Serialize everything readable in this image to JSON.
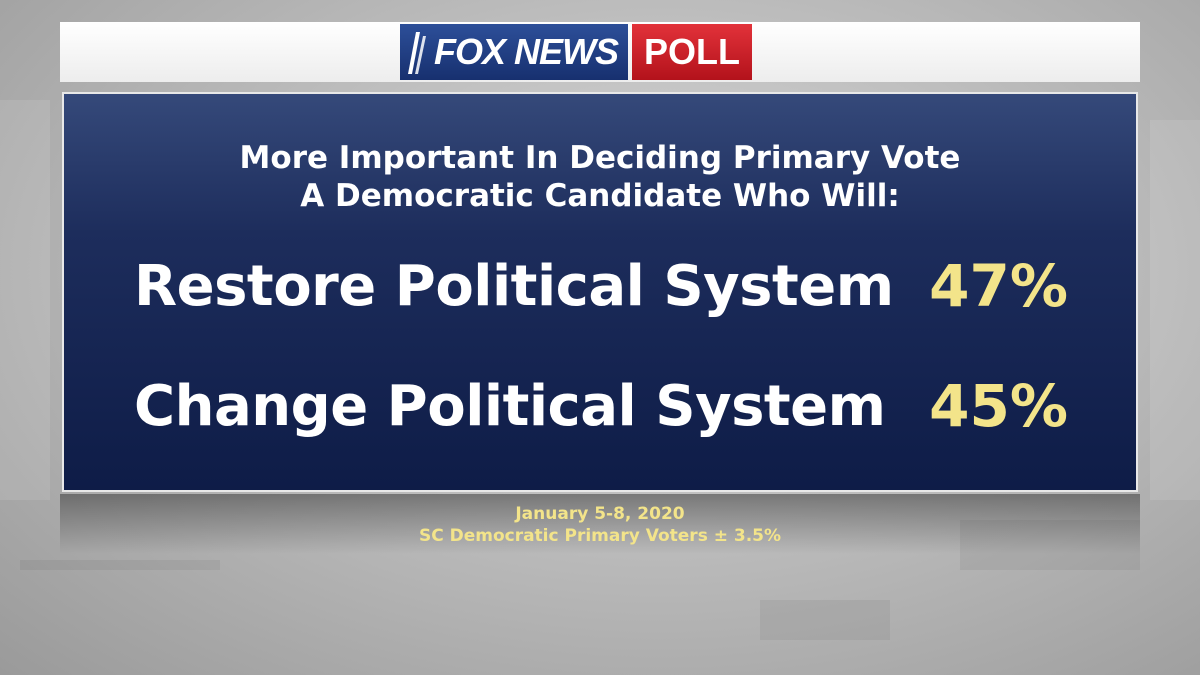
{
  "logo": {
    "brand": "FOX NEWS",
    "suffix": "POLL",
    "colors": {
      "blue": "#1f3b82",
      "red": "#c8161e"
    }
  },
  "question": {
    "line1": "More Important In Deciding Primary Vote",
    "line2": "A Democratic Candidate Who Will:"
  },
  "results": [
    {
      "label": "Restore Political System",
      "value": "47%"
    },
    {
      "label": "Change Political System",
      "value": "45%"
    }
  ],
  "footer": {
    "dates": "January 5-8, 2020",
    "sample": "SC Democratic Primary Voters ± 3.5%"
  },
  "colors": {
    "panel_navy": "#15245a",
    "value_yellow": "#f3e48a",
    "label_white": "#ffffff"
  }
}
